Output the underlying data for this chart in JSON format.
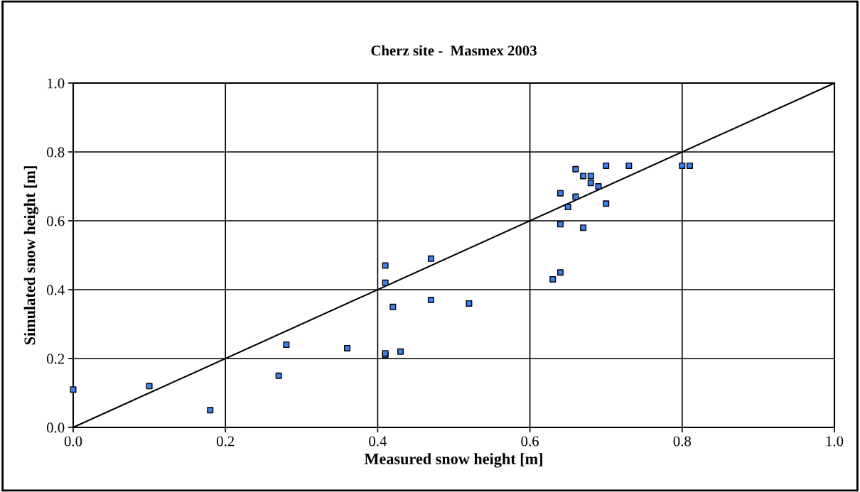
{
  "chart_data": {
    "type": "scatter",
    "title": "Cherz site -  Masmex 2003",
    "xlabel": "Measured snow height [m]",
    "ylabel": "Simulated snow height [m]",
    "xlim": [
      0,
      1
    ],
    "ylim": [
      0,
      1
    ],
    "xticks": [
      {
        "value": 0,
        "label": "0.0"
      },
      {
        "value": 0.2,
        "label": "0.2"
      },
      {
        "value": 0.4,
        "label": "0.4"
      },
      {
        "value": 0.6,
        "label": "0.6"
      },
      {
        "value": 0.8,
        "label": "0.8"
      },
      {
        "value": 1,
        "label": "1.0"
      }
    ],
    "yticks": [
      {
        "value": 0,
        "label": "0.0"
      },
      {
        "value": 0.2,
        "label": "0.2"
      },
      {
        "value": 0.4,
        "label": "0.4"
      },
      {
        "value": 0.6,
        "label": "0.6"
      },
      {
        "value": 0.8,
        "label": "0.8"
      },
      {
        "value": 1,
        "label": "1.0"
      }
    ],
    "grid": true,
    "series": [
      {
        "marker": "square",
        "color": "#3d7ef0",
        "x": [
          0,
          0.1,
          0.18,
          0.27,
          0.28,
          0.36,
          0.41,
          0.41,
          0.43,
          0.41,
          0.41,
          0.42,
          0.47,
          0.47,
          0.52,
          0.63,
          0.64,
          0.64,
          0.64,
          0.65,
          0.66,
          0.66,
          0.67,
          0.67,
          0.68,
          0.68,
          0.69,
          0.7,
          0.7,
          0.73,
          0.8,
          0.81
        ],
        "values": [
          0.11,
          0.12,
          0.05,
          0.15,
          0.24,
          0.23,
          0.21,
          0.215,
          0.22,
          0.42,
          0.47,
          0.35,
          0.37,
          0.49,
          0.36,
          0.43,
          0.45,
          0.59,
          0.68,
          0.64,
          0.67,
          0.75,
          0.73,
          0.58,
          0.73,
          0.71,
          0.7,
          0.65,
          0.76,
          0.76,
          0.76,
          0.76
        ]
      },
      {
        "type": "line",
        "color": "#000000",
        "x": [
          0,
          1
        ],
        "values": [
          0,
          1
        ]
      }
    ]
  }
}
